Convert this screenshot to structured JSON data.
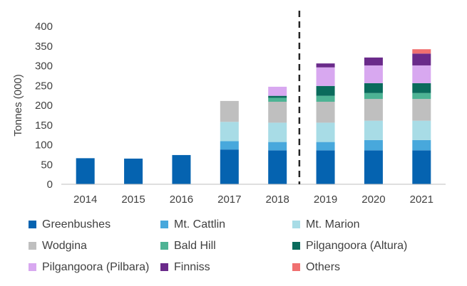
{
  "chart_data": {
    "type": "bar",
    "stacked": true,
    "categories": [
      "2014",
      "2015",
      "2016",
      "2017",
      "2018",
      "2019",
      "2020",
      "2021"
    ],
    "ylabel": "Tonnes (000)",
    "xlabel": "",
    "ylim": [
      0,
      400
    ],
    "yticks": [
      0,
      50,
      100,
      150,
      200,
      250,
      300,
      350,
      400
    ],
    "grid": false,
    "legend_position": "bottom",
    "forecast_divider_after": "2018",
    "series": [
      {
        "name": "Greenbushes",
        "color": "#0563B0",
        "values": [
          66,
          65,
          74,
          88,
          86,
          86,
          86,
          86
        ]
      },
      {
        "name": "Mt. Cattlin",
        "color": "#48A8DC",
        "values": [
          0,
          0,
          0,
          21,
          21,
          21,
          26,
          26
        ]
      },
      {
        "name": "Mt. Marion",
        "color": "#A8DCE6",
        "values": [
          0,
          0,
          0,
          49,
          49,
          49,
          49,
          49
        ]
      },
      {
        "name": "Wodgina",
        "color": "#BFBFBF",
        "values": [
          0,
          0,
          0,
          53,
          53,
          53,
          55,
          55
        ]
      },
      {
        "name": "Bald Hill",
        "color": "#4DB394",
        "values": [
          0,
          0,
          0,
          0,
          10,
          15,
          15,
          15
        ]
      },
      {
        "name": "Pilgangoora (Altura)",
        "color": "#0A6B5C",
        "values": [
          0,
          0,
          0,
          0,
          5,
          25,
          25,
          25
        ]
      },
      {
        "name": "Pilgangoora (Pilbara)",
        "color": "#D8A8F0",
        "values": [
          0,
          0,
          0,
          0,
          23,
          47,
          45,
          45
        ]
      },
      {
        "name": "Finniss",
        "color": "#6A2A8A",
        "values": [
          0,
          0,
          0,
          0,
          0,
          10,
          20,
          30
        ]
      },
      {
        "name": "Others",
        "color": "#F07070",
        "values": [
          0,
          0,
          0,
          0,
          0,
          0,
          0,
          11
        ]
      }
    ]
  }
}
